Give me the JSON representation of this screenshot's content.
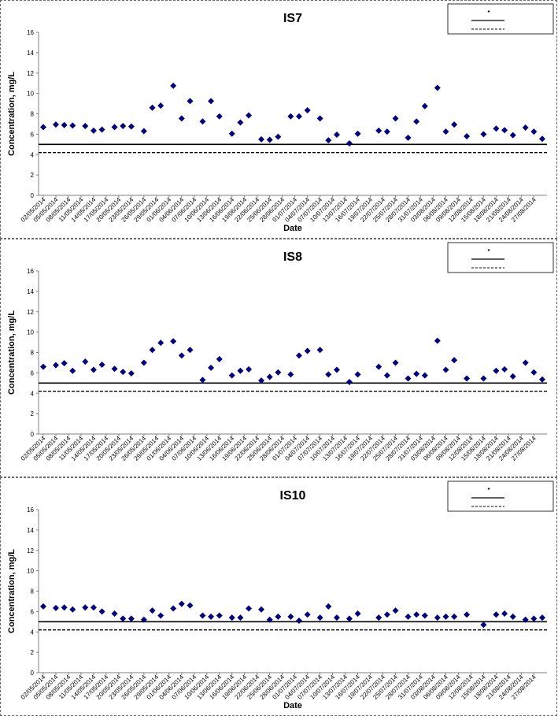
{
  "chart_data": [
    {
      "type": "scatter",
      "title": "IS7",
      "xlabel": "Date",
      "ylabel": "Concentration, mg/L",
      "ylim": [
        0,
        16
      ],
      "yticks": [
        0,
        2,
        4,
        6,
        8,
        10,
        12,
        14,
        16
      ],
      "legend_position": "top-right",
      "xticks": [
        "02/05/2014",
        "05/05/2014",
        "08/05/2014",
        "11/05/2014",
        "14/05/2014",
        "17/05/2014",
        "20/05/2014",
        "23/05/2014",
        "26/05/2014",
        "29/05/2014",
        "01/06/2014",
        "04/06/2014",
        "07/06/2014",
        "10/06/2014",
        "13/06/2014",
        "16/06/2014",
        "19/06/2014",
        "22/06/2014",
        "25/06/2014",
        "28/06/2014",
        "01/07/2014",
        "04/07/2014",
        "07/07/2014",
        "10/07/2014",
        "13/07/2014",
        "16/07/2014",
        "19/07/2014",
        "22/07/2014",
        "25/07/2014",
        "28/07/2014",
        "31/07/2014",
        "03/08/2014",
        "06/08/2014",
        "09/08/2014",
        "12/08/2014",
        "15/08/2014",
        "18/08/2014",
        "21/08/2014",
        "24/08/2014",
        "27/08/2014"
      ],
      "x_range": [
        "02/05/2014",
        "29/08/2014"
      ],
      "points": [
        {
          "x": "02/05/2014",
          "y": 6.7
        },
        {
          "x": "05/05/2014",
          "y": 6.95
        },
        {
          "x": "07/05/2014",
          "y": 6.9
        },
        {
          "x": "09/05/2014",
          "y": 6.85
        },
        {
          "x": "12/05/2014",
          "y": 6.8
        },
        {
          "x": "14/05/2014",
          "y": 6.35
        },
        {
          "x": "16/05/2014",
          "y": 6.45
        },
        {
          "x": "19/05/2014",
          "y": 6.7
        },
        {
          "x": "21/05/2014",
          "y": 6.8
        },
        {
          "x": "23/05/2014",
          "y": 6.75
        },
        {
          "x": "26/05/2014",
          "y": 6.3
        },
        {
          "x": "28/05/2014",
          "y": 8.6
        },
        {
          "x": "30/05/2014",
          "y": 8.8
        },
        {
          "x": "02/06/2014",
          "y": 10.75
        },
        {
          "x": "04/06/2014",
          "y": 7.55
        },
        {
          "x": "06/06/2014",
          "y": 9.25
        },
        {
          "x": "09/06/2014",
          "y": 7.25
        },
        {
          "x": "11/06/2014",
          "y": 9.25
        },
        {
          "x": "13/06/2014",
          "y": 7.75
        },
        {
          "x": "16/06/2014",
          "y": 6.05
        },
        {
          "x": "18/06/2014",
          "y": 7.15
        },
        {
          "x": "20/06/2014",
          "y": 7.85
        },
        {
          "x": "23/06/2014",
          "y": 5.5
        },
        {
          "x": "25/06/2014",
          "y": 5.45
        },
        {
          "x": "27/06/2014",
          "y": 5.75
        },
        {
          "x": "30/06/2014",
          "y": 7.75
        },
        {
          "x": "02/07/2014",
          "y": 7.75
        },
        {
          "x": "04/07/2014",
          "y": 8.35
        },
        {
          "x": "07/07/2014",
          "y": 7.55
        },
        {
          "x": "09/07/2014",
          "y": 5.4
        },
        {
          "x": "11/07/2014",
          "y": 5.95
        },
        {
          "x": "14/07/2014",
          "y": 5.1
        },
        {
          "x": "16/07/2014",
          "y": 6.05
        },
        {
          "x": "21/07/2014",
          "y": 6.35
        },
        {
          "x": "23/07/2014",
          "y": 6.25
        },
        {
          "x": "25/07/2014",
          "y": 7.55
        },
        {
          "x": "28/07/2014",
          "y": 5.65
        },
        {
          "x": "30/07/2014",
          "y": 7.25
        },
        {
          "x": "01/08/2014",
          "y": 8.75
        },
        {
          "x": "04/08/2014",
          "y": 10.55
        },
        {
          "x": "06/08/2014",
          "y": 6.25
        },
        {
          "x": "08/08/2014",
          "y": 6.95
        },
        {
          "x": "11/08/2014",
          "y": 5.8
        },
        {
          "x": "15/08/2014",
          "y": 6.0
        },
        {
          "x": "18/08/2014",
          "y": 6.55
        },
        {
          "x": "20/08/2014",
          "y": 6.4
        },
        {
          "x": "22/08/2014",
          "y": 5.9
        },
        {
          "x": "25/08/2014",
          "y": 6.65
        },
        {
          "x": "27/08/2014",
          "y": 6.25
        },
        {
          "x": "29/08/2014",
          "y": 5.55
        }
      ],
      "reference_lines": [
        {
          "y": 5.0,
          "style": "solid"
        },
        {
          "y": 4.2,
          "style": "dashed"
        }
      ],
      "colors": {
        "points": "#00007f",
        "lines": "#000000"
      }
    },
    {
      "type": "scatter",
      "title": "IS8",
      "xlabel": "",
      "ylabel": "Concentration, mg/L",
      "ylim": [
        0,
        16
      ],
      "yticks": [
        0,
        2,
        4,
        6,
        8,
        10,
        12,
        14,
        16
      ],
      "legend_position": "top-right",
      "xticks": [
        "02/05/2014",
        "05/05/2014",
        "08/05/2014",
        "11/05/2014",
        "14/05/2014",
        "17/05/2014",
        "20/05/2014",
        "23/05/2014",
        "26/05/2014",
        "29/05/2014",
        "01/06/2014",
        "04/06/2014",
        "07/06/2014",
        "10/06/2014",
        "13/06/2014",
        "16/06/2014",
        "19/06/2014",
        "22/06/2014",
        "25/06/2014",
        "28/06/2014",
        "01/07/2014",
        "04/07/2014",
        "07/07/2014",
        "10/07/2014",
        "13/07/2014",
        "16/07/2014",
        "19/07/2014",
        "22/07/2014",
        "25/07/2014",
        "28/07/2014",
        "31/07/2014",
        "03/08/2014",
        "06/08/2014",
        "09/08/2014",
        "12/08/2014",
        "15/08/2014",
        "18/08/2014",
        "21/08/2014",
        "24/08/2014",
        "27/08/2014"
      ],
      "x_range": [
        "02/05/2014",
        "29/08/2014"
      ],
      "points": [
        {
          "x": "02/05/2014",
          "y": 6.6
        },
        {
          "x": "05/05/2014",
          "y": 6.75
        },
        {
          "x": "07/05/2014",
          "y": 6.95
        },
        {
          "x": "09/05/2014",
          "y": 6.2
        },
        {
          "x": "12/05/2014",
          "y": 7.1
        },
        {
          "x": "14/05/2014",
          "y": 6.3
        },
        {
          "x": "16/05/2014",
          "y": 6.8
        },
        {
          "x": "19/05/2014",
          "y": 6.4
        },
        {
          "x": "21/05/2014",
          "y": 6.1
        },
        {
          "x": "23/05/2014",
          "y": 5.95
        },
        {
          "x": "26/05/2014",
          "y": 7.0
        },
        {
          "x": "28/05/2014",
          "y": 8.25
        },
        {
          "x": "30/05/2014",
          "y": 8.95
        },
        {
          "x": "02/06/2014",
          "y": 9.1
        },
        {
          "x": "04/06/2014",
          "y": 7.7
        },
        {
          "x": "06/06/2014",
          "y": 8.25
        },
        {
          "x": "09/06/2014",
          "y": 5.3
        },
        {
          "x": "11/06/2014",
          "y": 6.5
        },
        {
          "x": "13/06/2014",
          "y": 7.35
        },
        {
          "x": "16/06/2014",
          "y": 5.75
        },
        {
          "x": "18/06/2014",
          "y": 6.2
        },
        {
          "x": "20/06/2014",
          "y": 6.35
        },
        {
          "x": "23/06/2014",
          "y": 5.25
        },
        {
          "x": "25/06/2014",
          "y": 5.6
        },
        {
          "x": "27/06/2014",
          "y": 6.05
        },
        {
          "x": "30/06/2014",
          "y": 5.85
        },
        {
          "x": "02/07/2014",
          "y": 7.7
        },
        {
          "x": "04/07/2014",
          "y": 8.15
        },
        {
          "x": "07/07/2014",
          "y": 8.25
        },
        {
          "x": "09/07/2014",
          "y": 5.85
        },
        {
          "x": "11/07/2014",
          "y": 6.3
        },
        {
          "x": "14/07/2014",
          "y": 5.1
        },
        {
          "x": "16/07/2014",
          "y": 5.85
        },
        {
          "x": "21/07/2014",
          "y": 6.6
        },
        {
          "x": "23/07/2014",
          "y": 5.75
        },
        {
          "x": "25/07/2014",
          "y": 7.0
        },
        {
          "x": "28/07/2014",
          "y": 5.45
        },
        {
          "x": "30/07/2014",
          "y": 5.9
        },
        {
          "x": "01/08/2014",
          "y": 5.75
        },
        {
          "x": "04/08/2014",
          "y": 9.15
        },
        {
          "x": "06/08/2014",
          "y": 6.3
        },
        {
          "x": "08/08/2014",
          "y": 7.25
        },
        {
          "x": "11/08/2014",
          "y": 5.45
        },
        {
          "x": "15/08/2014",
          "y": 5.45
        },
        {
          "x": "18/08/2014",
          "y": 6.2
        },
        {
          "x": "20/08/2014",
          "y": 6.35
        },
        {
          "x": "22/08/2014",
          "y": 5.65
        },
        {
          "x": "25/08/2014",
          "y": 7.0
        },
        {
          "x": "27/08/2014",
          "y": 6.05
        },
        {
          "x": "29/08/2014",
          "y": 5.35
        }
      ],
      "reference_lines": [
        {
          "y": 5.0,
          "style": "solid"
        },
        {
          "y": 4.2,
          "style": "dashed"
        }
      ],
      "colors": {
        "points": "#00007f",
        "lines": "#000000"
      }
    },
    {
      "type": "scatter",
      "title": "IS10",
      "xlabel": "Date",
      "ylabel": "Concentration, mg/L",
      "ylim": [
        0,
        16
      ],
      "yticks": [
        0,
        2,
        4,
        6,
        8,
        10,
        12,
        14,
        16
      ],
      "legend_position": "top-right",
      "xticks": [
        "02/05/2014",
        "05/05/2014",
        "08/05/2014",
        "11/05/2014",
        "14/05/2014",
        "17/05/2014",
        "20/05/2014",
        "23/05/2014",
        "26/05/2014",
        "29/05/2014",
        "01/06/2014",
        "04/06/2014",
        "07/06/2014",
        "10/06/2014",
        "13/06/2014",
        "16/06/2014",
        "19/06/2014",
        "22/06/2014",
        "25/06/2014",
        "28/06/2014",
        "01/07/2014",
        "04/07/2014",
        "07/07/2014",
        "10/07/2014",
        "13/07/2014",
        "16/07/2014",
        "19/07/2014",
        "22/07/2014",
        "25/07/2014",
        "28/07/2014",
        "31/07/2014",
        "03/08/2014",
        "06/08/2014",
        "09/08/2014",
        "12/08/2014",
        "15/08/2014",
        "18/08/2014",
        "21/08/2014",
        "24/08/2014",
        "27/08/2014"
      ],
      "x_range": [
        "02/05/2014",
        "29/08/2014"
      ],
      "points": [
        {
          "x": "02/05/2014",
          "y": 6.5
        },
        {
          "x": "05/05/2014",
          "y": 6.35
        },
        {
          "x": "07/05/2014",
          "y": 6.4
        },
        {
          "x": "09/05/2014",
          "y": 6.2
        },
        {
          "x": "12/05/2014",
          "y": 6.4
        },
        {
          "x": "14/05/2014",
          "y": 6.4
        },
        {
          "x": "16/05/2014",
          "y": 6.0
        },
        {
          "x": "19/05/2014",
          "y": 5.8
        },
        {
          "x": "21/05/2014",
          "y": 5.3
        },
        {
          "x": "23/05/2014",
          "y": 5.3
        },
        {
          "x": "26/05/2014",
          "y": 5.2
        },
        {
          "x": "28/05/2014",
          "y": 6.1
        },
        {
          "x": "30/05/2014",
          "y": 5.6
        },
        {
          "x": "02/06/2014",
          "y": 6.3
        },
        {
          "x": "04/06/2014",
          "y": 6.75
        },
        {
          "x": "06/06/2014",
          "y": 6.6
        },
        {
          "x": "09/06/2014",
          "y": 5.6
        },
        {
          "x": "11/06/2014",
          "y": 5.5
        },
        {
          "x": "13/06/2014",
          "y": 5.6
        },
        {
          "x": "16/06/2014",
          "y": 5.4
        },
        {
          "x": "18/06/2014",
          "y": 5.4
        },
        {
          "x": "20/06/2014",
          "y": 6.3
        },
        {
          "x": "23/06/2014",
          "y": 6.2
        },
        {
          "x": "25/06/2014",
          "y": 5.2
        },
        {
          "x": "27/06/2014",
          "y": 5.5
        },
        {
          "x": "30/06/2014",
          "y": 5.5
        },
        {
          "x": "02/07/2014",
          "y": 5.1
        },
        {
          "x": "04/07/2014",
          "y": 5.7
        },
        {
          "x": "07/07/2014",
          "y": 5.4
        },
        {
          "x": "09/07/2014",
          "y": 6.5
        },
        {
          "x": "11/07/2014",
          "y": 5.4
        },
        {
          "x": "14/07/2014",
          "y": 5.3
        },
        {
          "x": "16/07/2014",
          "y": 5.8
        },
        {
          "x": "21/07/2014",
          "y": 5.4
        },
        {
          "x": "23/07/2014",
          "y": 5.7
        },
        {
          "x": "25/07/2014",
          "y": 6.1
        },
        {
          "x": "28/07/2014",
          "y": 5.5
        },
        {
          "x": "30/07/2014",
          "y": 5.7
        },
        {
          "x": "01/08/2014",
          "y": 5.6
        },
        {
          "x": "04/08/2014",
          "y": 5.4
        },
        {
          "x": "06/08/2014",
          "y": 5.5
        },
        {
          "x": "08/08/2014",
          "y": 5.5
        },
        {
          "x": "11/08/2014",
          "y": 5.7
        },
        {
          "x": "15/08/2014",
          "y": 4.7
        },
        {
          "x": "18/08/2014",
          "y": 5.7
        },
        {
          "x": "20/08/2014",
          "y": 5.8
        },
        {
          "x": "22/08/2014",
          "y": 5.5
        },
        {
          "x": "25/08/2014",
          "y": 5.2
        },
        {
          "x": "27/08/2014",
          "y": 5.3
        },
        {
          "x": "29/08/2014",
          "y": 5.4
        }
      ],
      "reference_lines": [
        {
          "y": 5.0,
          "style": "solid"
        },
        {
          "y": 4.2,
          "style": "dashed"
        }
      ],
      "colors": {
        "points": "#00007f",
        "lines": "#000000"
      }
    }
  ]
}
